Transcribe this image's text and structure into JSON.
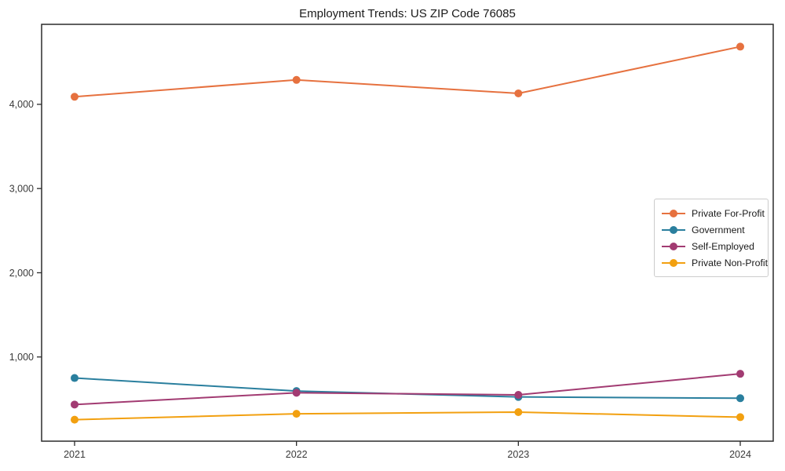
{
  "chart_data": {
    "type": "line",
    "title": "Employment Trends: US ZIP Code 76085",
    "categories": [
      "2021",
      "2022",
      "2023",
      "2024"
    ],
    "series": [
      {
        "name": "Private For-Profit",
        "color": "#E6713F",
        "values": [
          4090,
          4290,
          4130,
          4685
        ]
      },
      {
        "name": "Government",
        "color": "#2A7F9E",
        "values": [
          750,
          595,
          525,
          510
        ]
      },
      {
        "name": "Self-Employed",
        "color": "#A23B72",
        "values": [
          435,
          575,
          550,
          800
        ]
      },
      {
        "name": "Private Non-Profit",
        "color": "#F2A010",
        "values": [
          255,
          325,
          345,
          285
        ]
      }
    ],
    "yticks": [
      {
        "value": 1000,
        "label": "1,000"
      },
      {
        "value": 2000,
        "label": "2,000"
      },
      {
        "value": 3000,
        "label": "3,000"
      },
      {
        "value": 4000,
        "label": "4,000"
      }
    ],
    "ylim": [
      0,
      4950
    ],
    "xlabel": "",
    "ylabel": "",
    "grid": false,
    "legend_position": "right-middle",
    "axis_color": "#2b2b2b",
    "tick_label_color": "#3a3a3a"
  }
}
